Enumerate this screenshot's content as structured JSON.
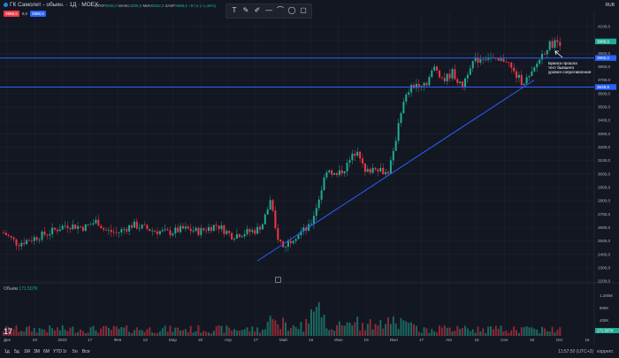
{
  "header": {
    "title": "ГК Самолет - обыкн. · 1Д · MOEX",
    "ohlc": {
      "o_label": "ОТКР",
      "o": "3935,0",
      "h_label": "МАКС",
      "h": "4005,0",
      "l_label": "МИН",
      "l": "3932,0",
      "c_label": "ЗАКР",
      "c": "3988,5",
      "change": "+57,5 (+1,46%)"
    },
    "sell_price": "3988,5",
    "qty": "0,0",
    "buy_price": "3988,5",
    "currency": "RUB"
  },
  "drawing_tools": [
    {
      "name": "text-tool-icon",
      "glyph": "T"
    },
    {
      "name": "brush-tool-icon",
      "glyph": "✎"
    },
    {
      "name": "pen-tool-icon",
      "glyph": "✐"
    },
    {
      "name": "line-tool-icon",
      "glyph": "—"
    },
    {
      "name": "curve-tool-icon",
      "glyph": "⌒"
    },
    {
      "name": "ellipse-tool-icon",
      "glyph": "◯"
    },
    {
      "name": "rectangle-tool-icon",
      "glyph": "▢"
    }
  ],
  "volume": {
    "label": "Объём",
    "value": "171.507K"
  },
  "annotation": "Бумага прошла\nтест бывшего\nуровня сопротивления",
  "price_axis": {
    "ticks": [
      "4100,0",
      "4000,0",
      "3900,0",
      "3800,0",
      "3700,0",
      "3600,0",
      "3500,0",
      "3400,0",
      "3300,0",
      "3200,0",
      "3100,0",
      "3000,0",
      "2900,0",
      "2800,0",
      "2700,0",
      "2600,0",
      "2500,0",
      "2400,0",
      "2300,0",
      "2200,0"
    ],
    "last_price": "3988,5",
    "level_upper": "3865,0",
    "level_lower": "3648,5"
  },
  "volume_axis": {
    "ticks": [
      "1.200M",
      "800K",
      "400K"
    ],
    "current": "171.507K"
  },
  "time_axis": {
    "ticks": [
      "Дек",
      "19",
      "2023",
      "17",
      "Фев",
      "13",
      "Мар",
      "20",
      "Апр",
      "17",
      "Май",
      "15",
      "Июн",
      "19",
      "Июл",
      "17",
      "Авг",
      "15",
      "Сен",
      "18",
      "Окт",
      "16"
    ]
  },
  "colors": {
    "up": "#22ab94",
    "down": "#f23645",
    "level": "#2962ff",
    "bg": "#131722",
    "grid": "#1e222d"
  },
  "bottombar": {
    "timeframes": [
      "1д",
      "5д",
      "1М",
      "3М",
      "6М",
      "YTD",
      "1г",
      "5л",
      "Все"
    ],
    "clock": "11:57:50 (UTC+3)",
    "mode": "коррект."
  },
  "chart_data": {
    "type": "candlestick",
    "symbol": "ГК Самолет - обыкн.",
    "interval": "1Д",
    "exchange": "MOEX",
    "x_range": [
      "Дек 2022",
      "Окт 2023"
    ],
    "y_range": [
      2200,
      4100
    ],
    "anchors": [
      [
        0,
        2580
      ],
      [
        20,
        2480
      ],
      [
        38,
        2520
      ],
      [
        55,
        2560
      ],
      [
        75,
        2620
      ],
      [
        95,
        2600
      ],
      [
        110,
        2650
      ],
      [
        118,
        2580
      ],
      [
        132,
        2560
      ],
      [
        150,
        2620
      ],
      [
        172,
        2580
      ],
      [
        190,
        2560
      ],
      [
        208,
        2590
      ],
      [
        225,
        2570
      ],
      [
        245,
        2620
      ],
      [
        262,
        2540
      ],
      [
        290,
        2580
      ],
      [
        297,
        2630
      ],
      [
        306,
        2800
      ],
      [
        312,
        2560
      ],
      [
        320,
        2450
      ],
      [
        330,
        2520
      ],
      [
        338,
        2560
      ],
      [
        350,
        2600
      ],
      [
        360,
        2800
      ],
      [
        370,
        3050
      ],
      [
        380,
        2980
      ],
      [
        392,
        3060
      ],
      [
        405,
        3200
      ],
      [
        412,
        3000
      ],
      [
        425,
        3060
      ],
      [
        438,
        3000
      ],
      [
        445,
        3150
      ],
      [
        452,
        3450
      ],
      [
        462,
        3620
      ],
      [
        472,
        3680
      ],
      [
        482,
        3680
      ],
      [
        492,
        3800
      ],
      [
        502,
        3700
      ],
      [
        512,
        3760
      ],
      [
        522,
        3640
      ],
      [
        532,
        3820
      ],
      [
        542,
        3860
      ],
      [
        552,
        3880
      ],
      [
        562,
        3830
      ],
      [
        572,
        3860
      ],
      [
        580,
        3760
      ],
      [
        590,
        3690
      ],
      [
        600,
        3720
      ],
      [
        610,
        3860
      ],
      [
        620,
        3960
      ],
      [
        630,
        3985
      ]
    ],
    "support_levels": [
      3865,
      3648.5
    ],
    "trendline": {
      "from": [
        "Апр 2023",
        2350
      ],
      "to": [
        "Сен 2023",
        3700
      ]
    },
    "last_close": 3988.5
  }
}
